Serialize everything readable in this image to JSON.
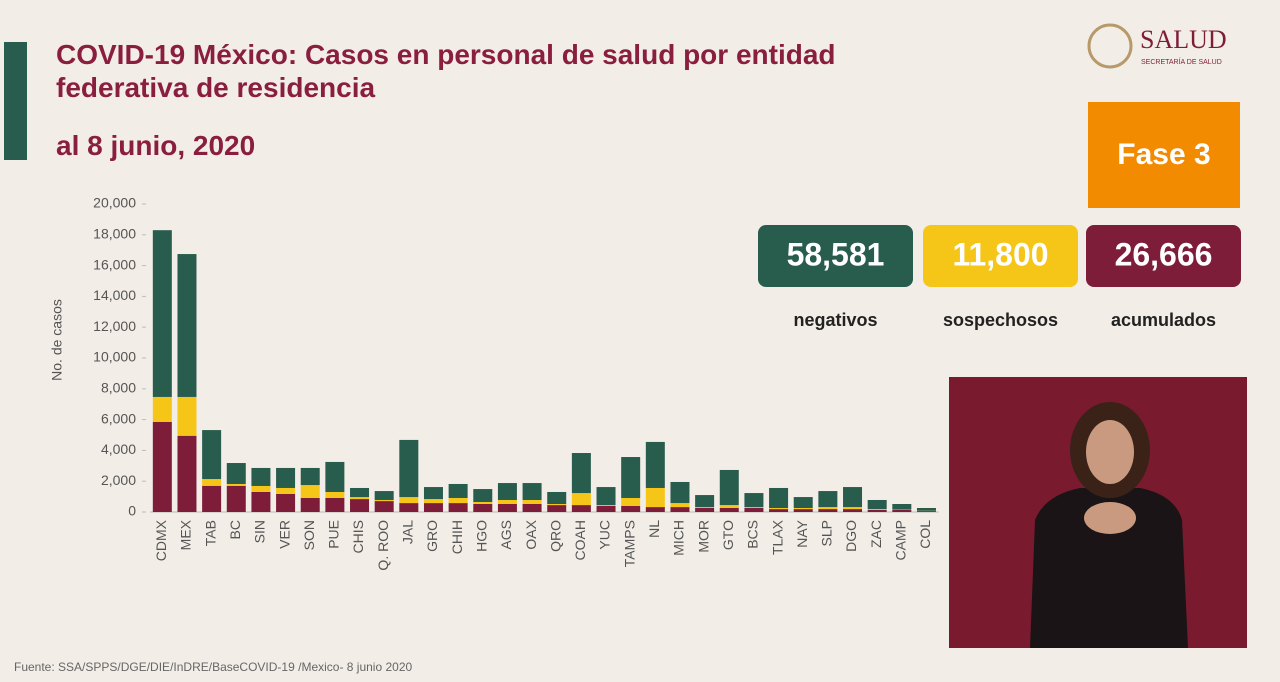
{
  "header": {
    "logo_text": "SALUD",
    "logo_subtext": "SECRETARÍA DE SALUD",
    "phase": "Fase 3"
  },
  "chart_data": {
    "type": "stacked-bar",
    "title": "COVID-19 México: Casos en personal de salud por entidad federativa de residencia",
    "subtitle": "al 8 junio, 2020",
    "y_label": "No. de casos",
    "source": "Fuente: SSA/SPPS/DGE/DIE/InDRE/BaseCOVID-19 /Mexico- 8 junio 2020",
    "categories": [
      "CDMX",
      "MEX",
      "TAB",
      "BC",
      "SIN",
      "VER",
      "SON",
      "PUE",
      "CHIS",
      "Q. ROO",
      "JAL",
      "GRO",
      "CHIH",
      "HGO",
      "AGS",
      "OAX",
      "QRO",
      "COAH",
      "YUC",
      "TAMPS",
      "NL",
      "MICH",
      "MOR",
      "GTO",
      "BCS",
      "TLAX",
      "NAY",
      "SLP",
      "DGO",
      "ZAC",
      "CAMP",
      "COL"
    ],
    "series": [
      {
        "name": "acumulados",
        "color": "#7e1d3a",
        "total": {
          "value": 26666,
          "label": "26,666"
        },
        "values": [
          5850,
          4950,
          1700,
          1700,
          1300,
          1170,
          910,
          910,
          840,
          710,
          580,
          580,
          580,
          520,
          520,
          520,
          450,
          450,
          390,
          390,
          320,
          320,
          260,
          260,
          260,
          190,
          190,
          190,
          190,
          130,
          130,
          60
        ]
      },
      {
        "name": "sospechosos",
        "color": "#f5c518",
        "total": {
          "value": 11800,
          "label": "11,800"
        },
        "values": [
          1620,
          2520,
          440,
          120,
          390,
          390,
          840,
          390,
          130,
          70,
          390,
          260,
          330,
          130,
          260,
          260,
          70,
          780,
          60,
          520,
          1240,
          260,
          60,
          190,
          60,
          70,
          70,
          130,
          130,
          60,
          30,
          20
        ]
      },
      {
        "name": "negativos",
        "color": "#285c4d",
        "total": {
          "value": 58581,
          "label": "58,581"
        },
        "values": [
          10830,
          9280,
          3180,
          1360,
          1170,
          1300,
          1110,
          1950,
          590,
          580,
          3710,
          780,
          910,
          840,
          1100,
          1100,
          780,
          2600,
          1170,
          2660,
          2990,
          1370,
          780,
          2280,
          910,
          1300,
          710,
          1040,
          1300,
          590,
          360,
          180
        ]
      }
    ],
    "ylim": [
      0,
      20000
    ],
    "yticks": [
      0,
      {
        "value": 2000,
        "label": "2,000"
      },
      {
        "value": 4000,
        "label": "4,000"
      },
      {
        "value": 6000,
        "label": "6,000"
      },
      {
        "value": 8000,
        "label": "8,000"
      },
      {
        "value": 10000,
        "label": "10,000"
      },
      {
        "value": 12000,
        "label": "12,000"
      },
      {
        "value": 14000,
        "label": "14,000"
      },
      {
        "value": 16000,
        "label": "16,000"
      },
      {
        "value": 18000,
        "label": "18,000"
      },
      {
        "value": 20000,
        "label": "20,000"
      }
    ]
  }
}
